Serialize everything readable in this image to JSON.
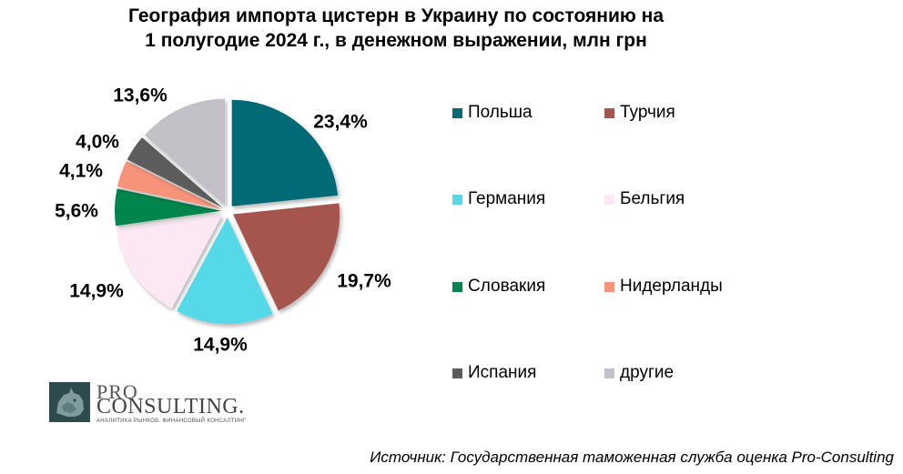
{
  "chart_data": {
    "type": "pie",
    "title_lines": [
      "География импорта цистерн в Украину по состоянию на",
      "1 полугодие 2024 г., в денежном выражении, млн грн"
    ],
    "legend_position": "right",
    "exploded": true,
    "slices": [
      {
        "label": "Польша",
        "value": 23.4,
        "value_label": "23,4%",
        "color": "#006b76"
      },
      {
        "label": "Турчия",
        "value": 19.7,
        "value_label": "19,7%",
        "color": "#a5544e"
      },
      {
        "label": "Германия",
        "value": 14.9,
        "value_label": "14,9%",
        "color": "#55d9e9"
      },
      {
        "label": "Бельгия",
        "value": 14.9,
        "value_label": "14,9%",
        "color": "#fce8f4"
      },
      {
        "label": "Словакия",
        "value": 5.6,
        "value_label": "5,6%",
        "color": "#00864e"
      },
      {
        "label": "Нидерланды",
        "value": 4.1,
        "value_label": "4,1%",
        "color": "#f7937a"
      },
      {
        "label": "Испания",
        "value": 4.0,
        "value_label": "4,0%",
        "color": "#5c5c5c"
      },
      {
        "label": "другие",
        "value": 13.6,
        "value_label": "13,6%",
        "color": "#c4c0c8"
      }
    ]
  },
  "logo": {
    "pro": "PRO",
    "consulting": "CONSULTING.",
    "tagline": "АНАЛИТИКА РЫНКОВ. ФИНАНСОВЫЙ КОНСАЛТИНГ"
  },
  "source": "Источник: Государственная таможенная служба оценка Pro-Consulting"
}
